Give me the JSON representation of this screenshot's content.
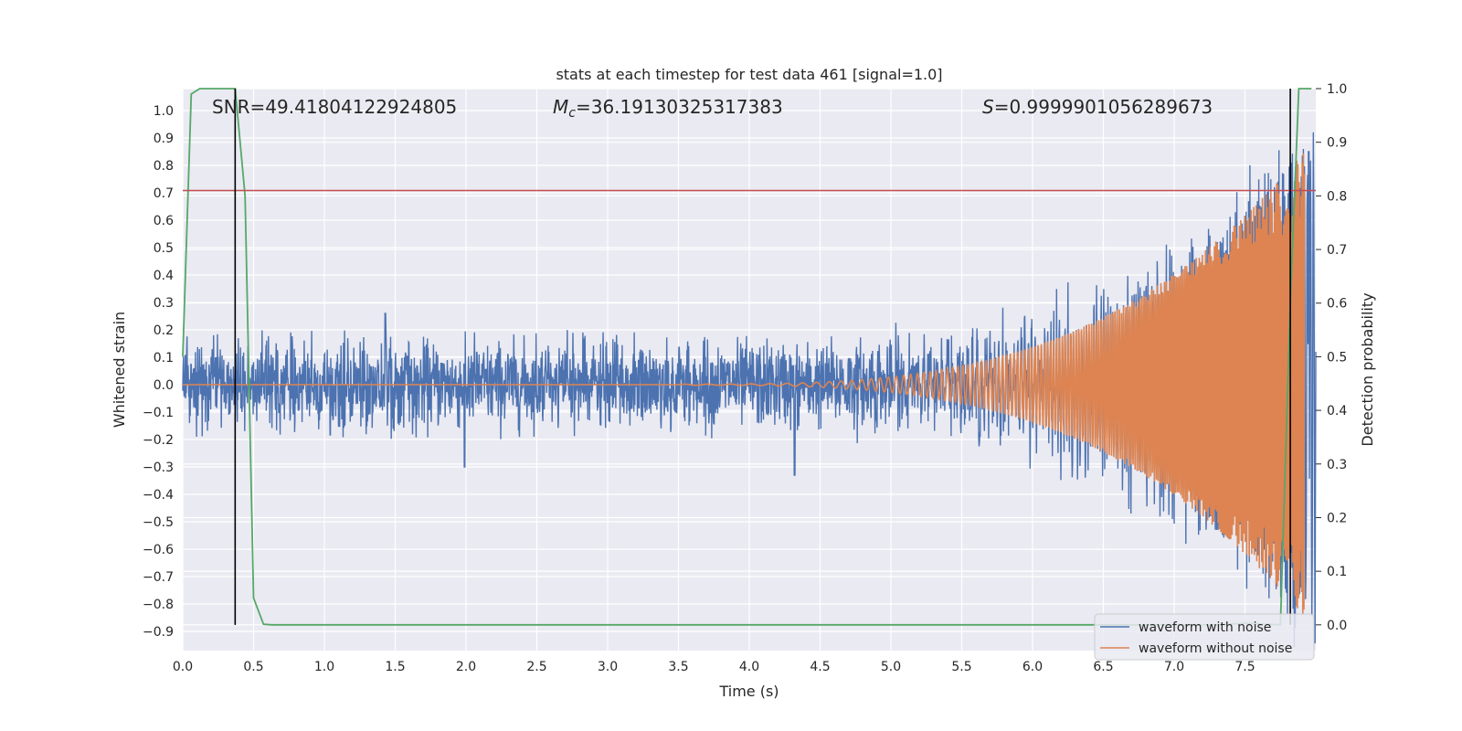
{
  "chart_data": {
    "type": "line",
    "title": "stats at each timestep for test data 461 [signal=1.0]",
    "xlabel": "Time (s)",
    "ylabel": "Whitened strain",
    "y2label": "Detection probability",
    "xlim": [
      0.0,
      8.0
    ],
    "ylim": [
      -0.97,
      1.08
    ],
    "y2lim": [
      -0.048,
      1.0
    ],
    "x_ticks": [
      0.0,
      0.5,
      1.0,
      1.5,
      2.0,
      2.5,
      3.0,
      3.5,
      4.0,
      4.5,
      5.0,
      5.5,
      6.0,
      6.5,
      7.0,
      7.5
    ],
    "x_tick_labels": [
      "0.0",
      "0.5",
      "1.0",
      "1.5",
      "2.0",
      "2.5",
      "3.0",
      "3.5",
      "4.0",
      "4.5",
      "5.0",
      "5.5",
      "6.0",
      "6.5",
      "7.0",
      "7.5"
    ],
    "y_ticks": [
      1.0,
      0.9,
      0.8,
      0.7,
      0.6,
      0.5,
      0.4,
      0.3,
      0.2,
      0.1,
      0.0,
      -0.1,
      -0.2,
      -0.3,
      -0.4,
      -0.5,
      -0.6,
      -0.7,
      -0.8,
      -0.9
    ],
    "y_tick_labels": [
      "1.0",
      "0.9",
      "0.8",
      "0.7",
      "0.6",
      "0.5",
      "0.4",
      "0.3",
      "0.2",
      "0.1",
      "0.0",
      "−0.1",
      "−0.2",
      "−0.3",
      "−0.4",
      "−0.5",
      "−0.6",
      "−0.7",
      "−0.8",
      "−0.9"
    ],
    "y2_ticks": [
      1.0,
      0.9,
      0.8,
      0.7,
      0.6,
      0.5,
      0.4,
      0.3,
      0.2,
      0.1,
      0.0
    ],
    "y2_tick_labels": [
      "1.0",
      "0.9",
      "0.8",
      "0.7",
      "0.6",
      "0.5",
      "0.4",
      "0.3",
      "0.2",
      "0.1",
      "0.0"
    ],
    "annotations": {
      "snr": "SNR=49.41804122924805",
      "mc_symbol": "M",
      "mc_subscript": "c",
      "mc_value": "=36.19130325317383",
      "s_symbol": "S",
      "s_value": "=0.9999901056289673"
    },
    "legend": {
      "placement": "lower-right",
      "entries": [
        "waveform with noise",
        "waveform without noise"
      ]
    },
    "series": [
      {
        "name": "waveform with noise",
        "color": "#4c72b0",
        "kind": "noise",
        "typical_max": 0.2,
        "typical_min": -0.2,
        "peaks": [
          {
            "x": 1.43,
            "y": 0.26
          },
          {
            "x": 7.42,
            "y": 0.32
          },
          {
            "x": 4.32,
            "y": -0.33
          },
          {
            "x": 1.99,
            "y": -0.3
          },
          {
            "x": 7.95,
            "y": 0.85
          }
        ]
      },
      {
        "name": "waveform without noise",
        "color": "#dd8452",
        "kind": "chirp",
        "start_x": 3.5,
        "end_x": 7.92,
        "start_amp": 0.002,
        "end_amp": 0.85
      },
      {
        "color": "#55a868",
        "axis": "y2",
        "x": [
          0.0,
          0.06,
          0.12,
          0.25,
          0.37,
          0.44,
          0.5,
          0.57,
          0.63,
          1.0,
          2.0,
          3.0,
          4.0,
          5.0,
          6.0,
          7.0,
          7.3,
          7.5,
          7.75,
          7.82,
          7.88,
          7.97
        ],
        "y": [
          0.5,
          0.99,
          1.0,
          1.0,
          1.0,
          0.8,
          0.05,
          0.001,
          0.0,
          0.0,
          0.0,
          0.0,
          0.0,
          0.0,
          0.0,
          0.0,
          0.0,
          0.003,
          0.0,
          0.6,
          1.0,
          1.0
        ]
      }
    ],
    "hlines": [
      {
        "y": 0.81,
        "color": "#c44e52"
      }
    ],
    "vlines": [
      {
        "x": 0.37,
        "y_top": 1.0,
        "color": "#000000"
      },
      {
        "x": 7.82,
        "y_top": 1.0,
        "color": "#000000"
      }
    ]
  }
}
